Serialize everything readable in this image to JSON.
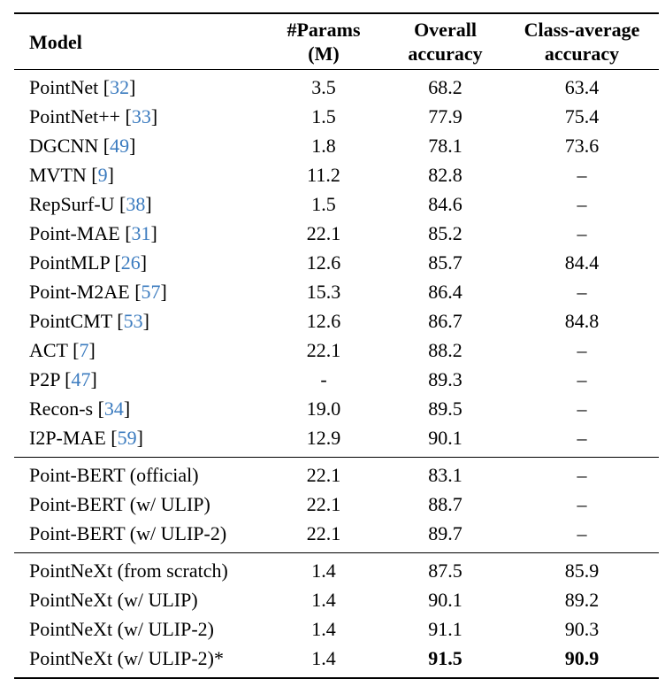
{
  "table": {
    "headers": {
      "model": "Model",
      "params_line1": "#Params",
      "params_line2": "(M)",
      "overall_line1": "Overall",
      "overall_line2": "accuracy",
      "class_avg_line1": "Class-average",
      "class_avg_line2": "accuracy"
    },
    "citation_color": "#3b7bbf",
    "text_color": "#000000",
    "background_color": "#ffffff",
    "groups": [
      {
        "rows": [
          {
            "model": "PointNet",
            "cite": "32",
            "params": "3.5",
            "overall": "68.2",
            "class_avg": "63.4"
          },
          {
            "model": "PointNet++",
            "cite": "33",
            "params": "1.5",
            "overall": "77.9",
            "class_avg": "75.4"
          },
          {
            "model": "DGCNN",
            "cite": "49",
            "params": "1.8",
            "overall": "78.1",
            "class_avg": "73.6"
          },
          {
            "model": "MVTN",
            "cite": "9",
            "params": "11.2",
            "overall": "82.8",
            "class_avg": "–"
          },
          {
            "model": "RepSurf-U",
            "cite": "38",
            "params": "1.5",
            "overall": "84.6",
            "class_avg": "–"
          },
          {
            "model": "Point-MAE",
            "cite": "31",
            "params": "22.1",
            "overall": "85.2",
            "class_avg": "–"
          },
          {
            "model": "PointMLP",
            "cite": "26",
            "params": "12.6",
            "overall": "85.7",
            "class_avg": "84.4"
          },
          {
            "model": "Point-M2AE",
            "cite": "57",
            "params": "15.3",
            "overall": "86.4",
            "class_avg": "–"
          },
          {
            "model": "PointCMT",
            "cite": "53",
            "params": "12.6",
            "overall": "86.7",
            "class_avg": "84.8"
          },
          {
            "model": "ACT",
            "cite": "7",
            "params": "22.1",
            "overall": "88.2",
            "class_avg": "–"
          },
          {
            "model": "P2P",
            "cite": "47",
            "params": "-",
            "overall": "89.3",
            "class_avg": "–"
          },
          {
            "model": "Recon-s",
            "cite": "34",
            "params": "19.0",
            "overall": "89.5",
            "class_avg": "–"
          },
          {
            "model": "I2P-MAE",
            "cite": "59",
            "params": "12.9",
            "overall": "90.1",
            "class_avg": "–"
          }
        ]
      },
      {
        "rows": [
          {
            "model": "Point-BERT (official)",
            "params": "22.1",
            "overall": "83.1",
            "class_avg": "–"
          },
          {
            "model": "Point-BERT (w/ ULIP)",
            "params": "22.1",
            "overall": "88.7",
            "class_avg": "–"
          },
          {
            "model": "Point-BERT (w/ ULIP-2)",
            "params": "22.1",
            "overall": "89.7",
            "class_avg": "–"
          }
        ]
      },
      {
        "rows": [
          {
            "model": "PointNeXt (from scratch)",
            "params": "1.4",
            "overall": "87.5",
            "class_avg": "85.9"
          },
          {
            "model": "PointNeXt (w/ ULIP)",
            "params": "1.4",
            "overall": "90.1",
            "class_avg": "89.2"
          },
          {
            "model": "PointNeXt (w/ ULIP-2)",
            "params": "1.4",
            "overall": "91.1",
            "class_avg": "90.3"
          },
          {
            "model": "PointNeXt (w/ ULIP-2)*",
            "params": "1.4",
            "overall": "91.5",
            "class_avg": "90.9",
            "bold": [
              "overall",
              "class_avg"
            ]
          }
        ]
      }
    ]
  }
}
